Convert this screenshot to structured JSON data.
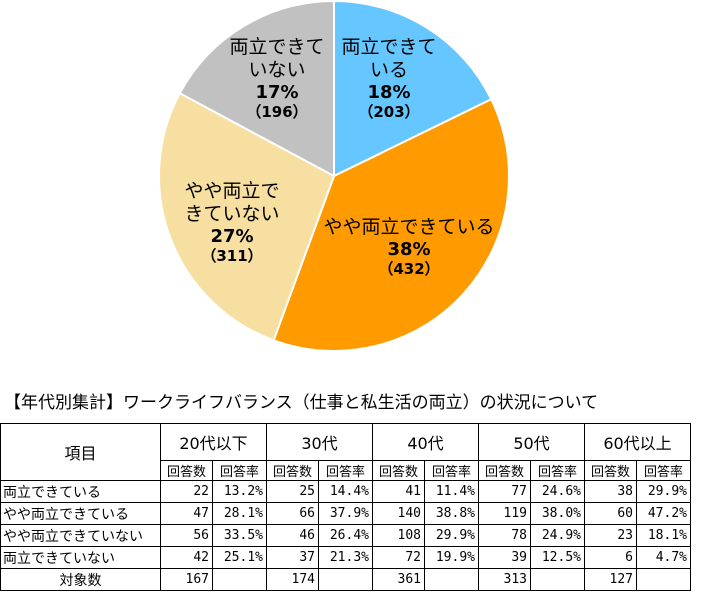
{
  "chart_data": {
    "type": "pie",
    "slices": [
      {
        "name": "両立できている",
        "percent_label": "18%",
        "count_label": "（203）",
        "value": 203,
        "color": "#66c6ff"
      },
      {
        "name": "やや両立できている",
        "percent_label": "38%",
        "count_label": "（432）",
        "value": 432,
        "color": "#ff9a00"
      },
      {
        "name": "やや両立できていない",
        "percent_label": "27%",
        "count_label": "（311）",
        "value": 311,
        "color": "#f7dea1"
      },
      {
        "name": "両立できていない",
        "percent_label": "17%",
        "count_label": "（196）",
        "value": 196,
        "color": "#c1c1c1"
      }
    ],
    "start": "12 o'clock",
    "direction": "clockwise"
  },
  "table": {
    "title": "【年代別集計】ワークライフバランス（仕事と私生活の両立）の状況について",
    "item_header": "項目",
    "age_groups": [
      "20代以下",
      "30代",
      "40代",
      "50代",
      "60代以上"
    ],
    "sub_headers": {
      "count": "回答数",
      "rate": "回答率"
    },
    "rows": [
      {
        "label": "両立できている",
        "cells": [
          [
            "22",
            "13.2%"
          ],
          [
            "25",
            "14.4%"
          ],
          [
            "41",
            "11.4%"
          ],
          [
            "77",
            "24.6%"
          ],
          [
            "38",
            "29.9%"
          ]
        ]
      },
      {
        "label": "やや両立できている",
        "cells": [
          [
            "47",
            "28.1%"
          ],
          [
            "66",
            "37.9%"
          ],
          [
            "140",
            "38.8%"
          ],
          [
            "119",
            "38.0%"
          ],
          [
            "60",
            "47.2%"
          ]
        ]
      },
      {
        "label": "やや両立できていない",
        "cells": [
          [
            "56",
            "33.5%"
          ],
          [
            "46",
            "26.4%"
          ],
          [
            "108",
            "29.9%"
          ],
          [
            "78",
            "24.9%"
          ],
          [
            "23",
            "18.1%"
          ]
        ]
      },
      {
        "label": "両立できていない",
        "cells": [
          [
            "42",
            "25.1%"
          ],
          [
            "37",
            "21.3%"
          ],
          [
            "72",
            "19.9%"
          ],
          [
            "39",
            "12.5%"
          ],
          [
            "6",
            "4.7%"
          ]
        ]
      }
    ],
    "total": {
      "label": "対象数",
      "values": [
        "167",
        "174",
        "361",
        "313",
        "127"
      ]
    }
  }
}
